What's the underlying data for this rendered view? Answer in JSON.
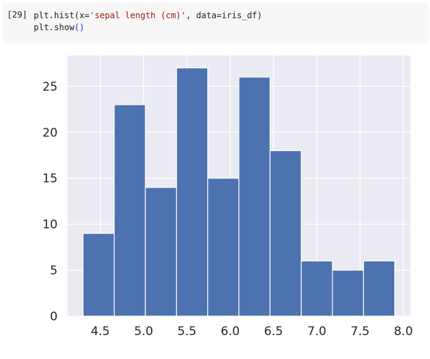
{
  "cell": {
    "prompt": "[29]",
    "line1_prefix": "plt.hist(x=",
    "line1_string": "'sepal length (cm)'",
    "line1_suffix": ", data=iris_df)",
    "line2_prefix": "plt.show",
    "line2_parens": "()"
  },
  "chart_data": {
    "type": "bar",
    "bins": [
      {
        "x0": 4.3,
        "x1": 4.66,
        "count": 9
      },
      {
        "x0": 4.66,
        "x1": 5.02,
        "count": 23
      },
      {
        "x0": 5.02,
        "x1": 5.38,
        "count": 14
      },
      {
        "x0": 5.38,
        "x1": 5.74,
        "count": 27
      },
      {
        "x0": 5.74,
        "x1": 6.1,
        "count": 15
      },
      {
        "x0": 6.1,
        "x1": 6.46,
        "count": 26
      },
      {
        "x0": 6.46,
        "x1": 6.82,
        "count": 18
      },
      {
        "x0": 6.82,
        "x1": 7.18,
        "count": 6
      },
      {
        "x0": 7.18,
        "x1": 7.54,
        "count": 5
      },
      {
        "x0": 7.54,
        "x1": 7.9,
        "count": 6
      }
    ],
    "x_ticks": [
      4.5,
      5.0,
      5.5,
      6.0,
      6.5,
      7.0,
      7.5,
      8.0
    ],
    "x_tick_labels": [
      "4.5",
      "5.0",
      "5.5",
      "6.0",
      "6.5",
      "7.0",
      "7.5",
      "8.0"
    ],
    "y_ticks": [
      0,
      5,
      10,
      15,
      20,
      25
    ],
    "y_tick_labels": [
      "0",
      "5",
      "10",
      "15",
      "20",
      "25"
    ],
    "xlim": [
      4.12,
      8.08
    ],
    "ylim": [
      0,
      28.35
    ],
    "grid": true,
    "colors": {
      "bar": "#4c72b0",
      "background": "#eaeaf2",
      "grid": "#ffffff"
    },
    "title": "",
    "xlabel": "",
    "ylabel": ""
  }
}
